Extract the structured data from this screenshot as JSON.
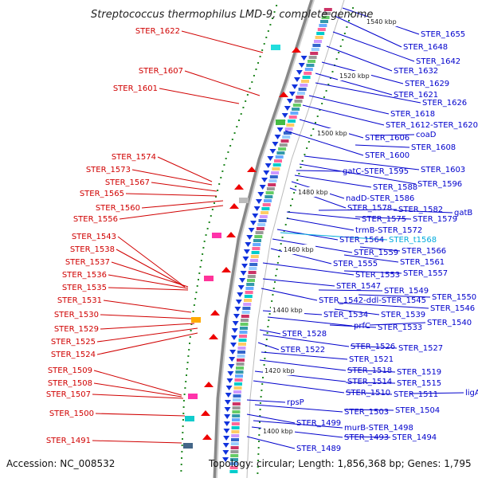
{
  "title": "Streptococcus thermophilus LMD-9, complete genome",
  "accession": "Accession: NC_008532",
  "topology": "Topology: circular; Length: 1,856,368 bp; Genes: 1,795",
  "colors": {
    "left": "#d00000",
    "right": "#0000cc",
    "special": "#00aadd"
  },
  "kbp_marks": [
    "1540 kbp",
    "1520 kbp",
    "1500 kbp",
    "1480 kbp",
    "1460 kbp",
    "1440 kbp",
    "1420 kbp",
    "1400 kbp"
  ],
  "left_labels": [
    "STER_1622",
    "STER_1607",
    "STER_1601",
    "STER_1574",
    "STER_1573",
    "STER_1567",
    "STER_1565",
    "STER_1560",
    "STER_1556",
    "STER_1543",
    "STER_1538",
    "STER_1537",
    "STER_1536",
    "STER_1535",
    "STER_1531",
    "STER_1530",
    "STER_1529",
    "STER_1525",
    "STER_1524",
    "STER_1509",
    "STER_1508",
    "STER_1507",
    "STER_1500",
    "STER_1491"
  ],
  "right_labels": [
    "STER_1655",
    "STER_1648",
    "STER_1642",
    "STER_1632",
    "STER_1629",
    "STER_1621",
    "STER_1626",
    "STER_1618",
    "STER_1612-STER_1620",
    "STER_1606",
    "coaD",
    "STER_1608",
    "STER_1600",
    "STER_1603",
    "gatC-STER_1595",
    "STER_1596",
    "STER_1588",
    "nadD-STER_1586",
    "STER_1578",
    "STER_1582",
    "gatB",
    "STER_1575",
    "STER_1579",
    "trmB-STER_1572",
    "STER_1564",
    "STER_t1568",
    "STER_1566",
    "STER_1559",
    "STER_1561",
    "STER_1555",
    "STER_1553",
    "STER_1557",
    "STER_1547",
    "STER_1549",
    "STER_1550",
    "STER_1542-ddl-STER_1545",
    "STER_1546",
    "STER_1534",
    "STER_1539",
    "prfC",
    "STER_1533",
    "STER_1540",
    "STER_1528",
    "STER_1526",
    "STER_1527",
    "STER_1522",
    "STER_1521",
    "STER_1518",
    "STER_1519",
    "STER_1514",
    "STER_1515",
    "STER_1510",
    "STER_1511",
    "ligA",
    "rpsP",
    "STER_1503",
    "STER_1504",
    "STER_1499",
    "murB-STER_1498",
    "STER_1493",
    "STER_1494",
    "STER_1489"
  ]
}
